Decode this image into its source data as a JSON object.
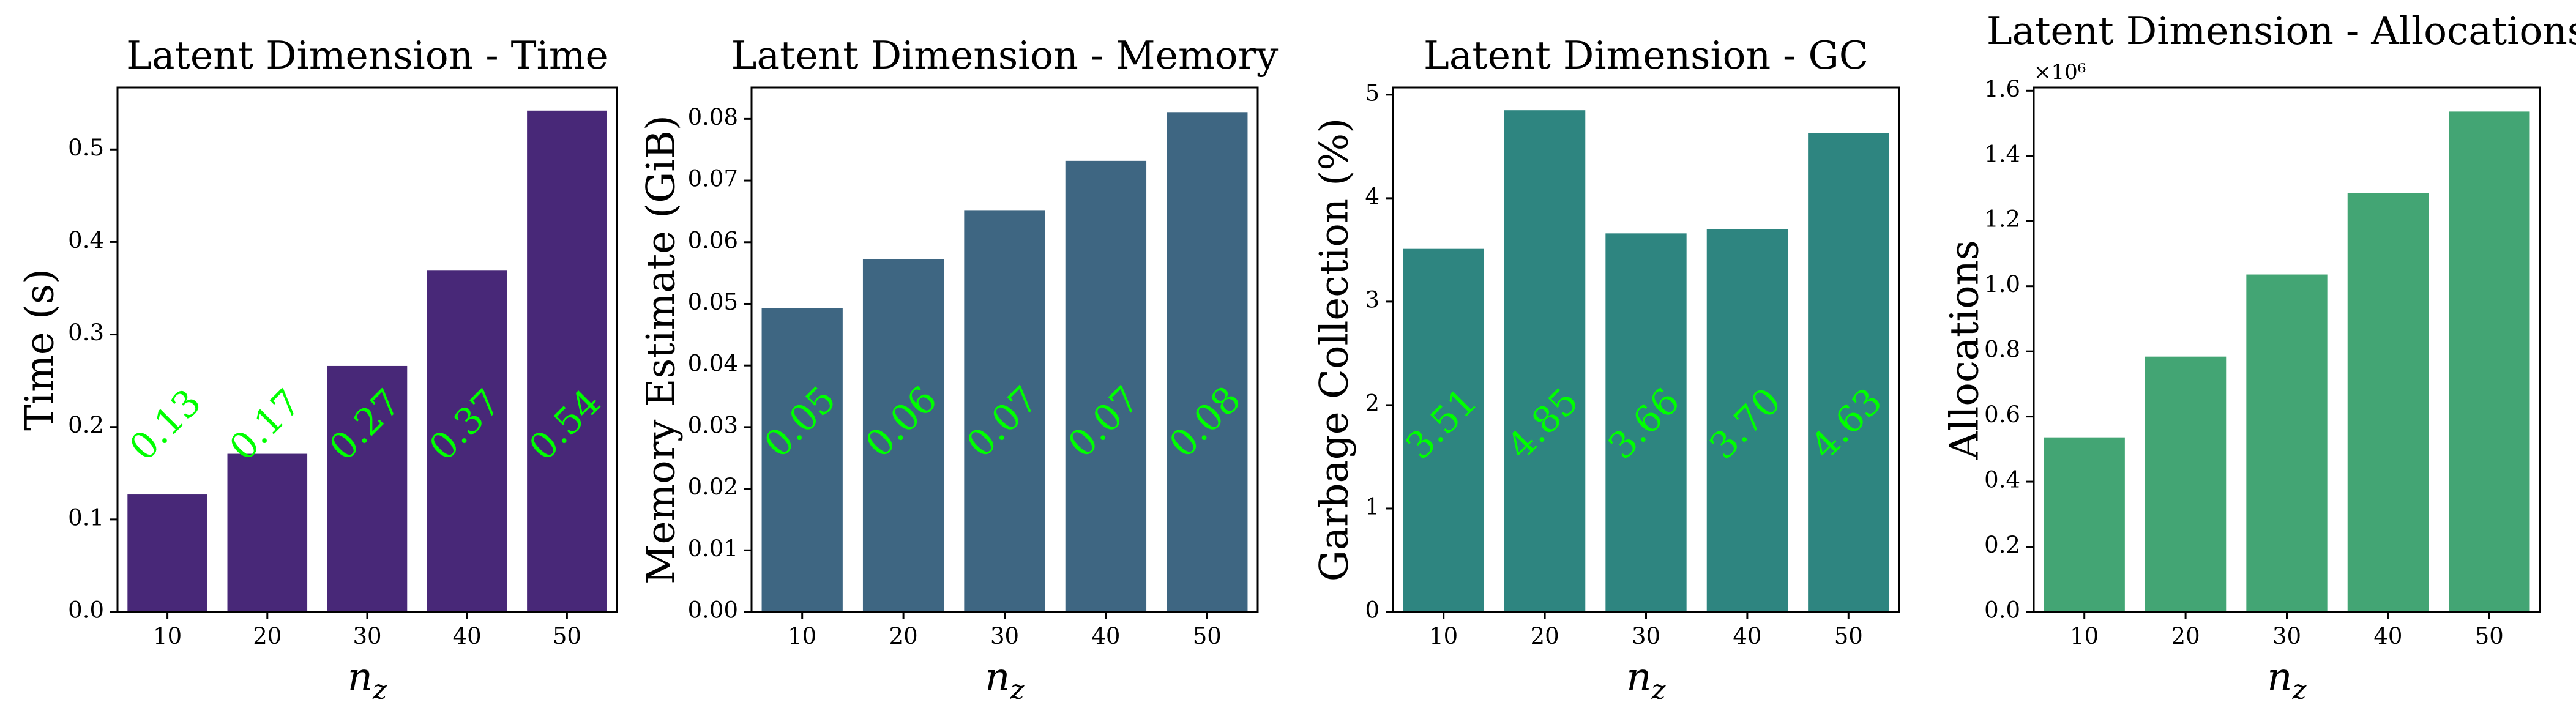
{
  "chart_data": [
    {
      "type": "bar",
      "title": "Latent Dimension - Time",
      "xlabel": "n_z",
      "ylabel": "Time (s)",
      "categories": [
        "10",
        "20",
        "30",
        "40",
        "50"
      ],
      "values": [
        0.127,
        0.171,
        0.266,
        0.369,
        0.542
      ],
      "value_labels": [
        "0.13",
        "0.17",
        "0.27",
        "0.37",
        "0.54"
      ],
      "ylim": [
        0,
        0.567
      ],
      "yticks": [
        0.0,
        0.1,
        0.2,
        0.3,
        0.4,
        0.5
      ],
      "ytick_labels": [
        "0.0",
        "0.1",
        "0.2",
        "0.3",
        "0.4",
        "0.5"
      ],
      "color": "#482878",
      "label_y": 0.2,
      "label_color": "#00ff00",
      "grid": false
    },
    {
      "type": "bar",
      "title": "Latent Dimension - Memory",
      "xlabel": "n_z",
      "ylabel": "Memory Estimate (GiB)",
      "categories": [
        "10",
        "20",
        "30",
        "40",
        "50"
      ],
      "values": [
        0.0493,
        0.0572,
        0.0652,
        0.0732,
        0.0811
      ],
      "value_labels": [
        "0.05",
        "0.06",
        "0.07",
        "0.07",
        "0.08"
      ],
      "ylim": [
        0,
        0.0851
      ],
      "yticks": [
        0.0,
        0.01,
        0.02,
        0.03,
        0.04,
        0.05,
        0.06,
        0.07,
        0.08
      ],
      "ytick_labels": [
        "0.00",
        "0.01",
        "0.02",
        "0.03",
        "0.04",
        "0.05",
        "0.06",
        "0.07",
        "0.08"
      ],
      "color": "#3e6682",
      "label_y": 0.0305,
      "label_color": "#00ff00",
      "grid": false
    },
    {
      "type": "bar",
      "title": "Latent Dimension - GC",
      "xlabel": "n_z",
      "ylabel": "Garbage Collection (%)",
      "categories": [
        "10",
        "20",
        "30",
        "40",
        "50"
      ],
      "values": [
        3.51,
        4.85,
        3.66,
        3.7,
        4.63
      ],
      "value_labels": [
        "3.51",
        "4.85",
        "3.66",
        "3.70",
        "4.63"
      ],
      "ylim": [
        0,
        5.07
      ],
      "yticks": [
        0,
        1,
        2,
        3,
        4,
        5
      ],
      "ytick_labels": [
        "0",
        "1",
        "2",
        "3",
        "4",
        "5"
      ],
      "color": "#2e8580",
      "label_y": 1.8,
      "label_color": "#00ff00",
      "grid": false
    },
    {
      "type": "bar",
      "title": "Latent Dimension - Allocations",
      "xlabel": "n_z",
      "ylabel": "Allocations",
      "scale_note": "×10⁶",
      "categories": [
        "10",
        "20",
        "30",
        "40",
        "50"
      ],
      "values": [
        536000,
        784000,
        1036000,
        1286000,
        1536000
      ],
      "ylim": [
        0,
        1610000
      ],
      "yticks": [
        0,
        200000,
        400000,
        600000,
        800000,
        1000000,
        1200000,
        1400000,
        1600000
      ],
      "ytick_labels": [
        "0.0",
        "0.2",
        "0.4",
        "0.6",
        "0.8",
        "1.0",
        "1.2",
        "1.4",
        "1.6"
      ],
      "color": "#43a574",
      "grid": false
    }
  ]
}
